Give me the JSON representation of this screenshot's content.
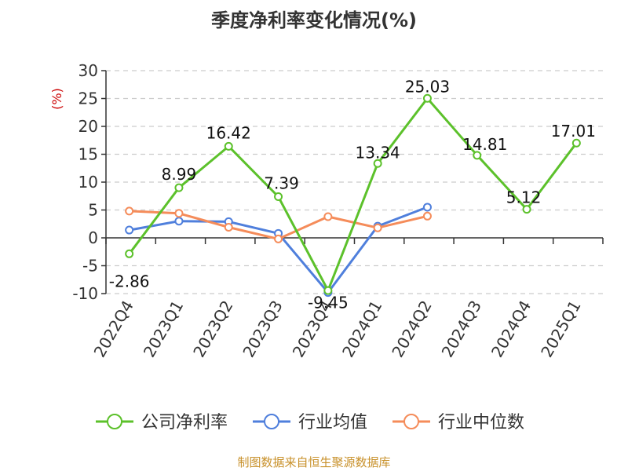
{
  "chart_data": {
    "type": "line",
    "title": "季度净利率变化情况(%)",
    "ylabel": "(%)",
    "xlabel": "",
    "categories": [
      "2022Q4",
      "2023Q1",
      "2023Q2",
      "2023Q3",
      "2023Q4",
      "2024Q1",
      "2024Q2",
      "2024Q3",
      "2024Q4",
      "2025Q1"
    ],
    "ylim": [
      -10,
      30
    ],
    "yticks": [
      30,
      25,
      20,
      15,
      10,
      5,
      0,
      -5,
      -10
    ],
    "ytick_labels": [
      "30",
      "25",
      "20",
      "15",
      "10",
      "5",
      "0",
      "-5",
      "-10"
    ],
    "grid": true,
    "legend_position": "bottom",
    "series": [
      {
        "name": "公司净利率",
        "color": "#5cc12b",
        "values": [
          -2.86,
          8.99,
          16.42,
          7.39,
          -9.45,
          13.34,
          25.03,
          14.81,
          5.12,
          17.01
        ],
        "labels": [
          "-2.86",
          "8.99",
          "16.42",
          "7.39",
          "-9.45",
          "13.34",
          "25.03",
          "14.81",
          "5.12",
          "17.01"
        ]
      },
      {
        "name": "行业均值",
        "color": "#4f7fdc",
        "values": [
          1.4,
          3.0,
          2.9,
          0.8,
          -9.8,
          2.1,
          5.5,
          null,
          null,
          null
        ]
      },
      {
        "name": "行业中位数",
        "color": "#f58c5a",
        "values": [
          4.8,
          4.4,
          1.9,
          -0.2,
          3.8,
          1.8,
          3.9,
          null,
          null,
          null
        ]
      }
    ],
    "source": "制图数据来自恒生聚源数据库"
  }
}
